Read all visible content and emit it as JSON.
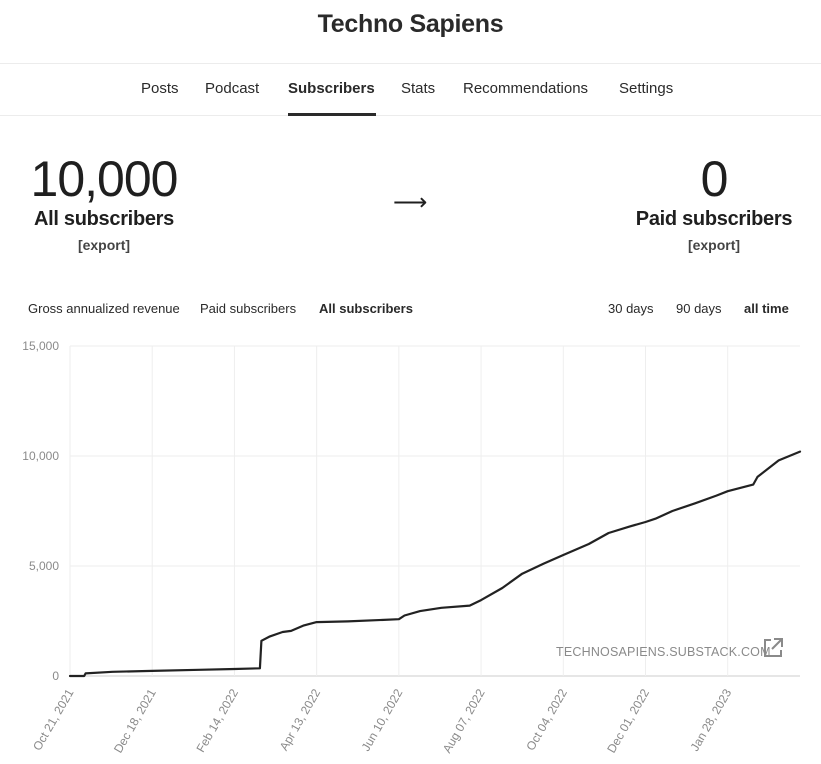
{
  "site": {
    "title": "Techno Sapiens"
  },
  "nav": {
    "tabs": [
      {
        "label": "Posts"
      },
      {
        "label": "Podcast"
      },
      {
        "label": "Subscribers",
        "active": true
      },
      {
        "label": "Stats"
      },
      {
        "label": "Recommendations"
      },
      {
        "label": "Settings"
      }
    ]
  },
  "stats": {
    "all": {
      "value": "10,000",
      "label": "All subscribers",
      "export": "[export]"
    },
    "arrow": "⟶",
    "paid": {
      "value": "0",
      "label": "Paid subscribers",
      "export": "[export]"
    }
  },
  "chart_filters": {
    "metrics": [
      "Gross annualized revenue",
      "Paid subscribers",
      "All subscribers"
    ],
    "active_metric": "All subscribers",
    "ranges": [
      "30 days",
      "90 days",
      "all time"
    ],
    "active_range": "all time"
  },
  "watermark": "TECHNOSAPIENS.SUBSTACK.COM",
  "icons": {
    "external_link": "external-link-icon"
  },
  "colors": {
    "line": "#222222",
    "grid": "#eeeeee",
    "tick_text": "#8a8a8a"
  },
  "chart_data": {
    "type": "line",
    "title": "",
    "xlabel": "",
    "ylabel": "",
    "ylim": [
      0,
      15000
    ],
    "y_ticks": [
      {
        "value": 0,
        "label": "0"
      },
      {
        "value": 5000,
        "label": "5,000"
      },
      {
        "value": 10000,
        "label": "10,000"
      },
      {
        "value": 15000,
        "label": "15,000"
      }
    ],
    "x_ticks": [
      {
        "date": "2021-10-21",
        "label": "Oct 21, 2021"
      },
      {
        "date": "2021-12-18",
        "label": "Dec 18, 2021"
      },
      {
        "date": "2022-02-14",
        "label": "Feb 14, 2022"
      },
      {
        "date": "2022-04-13",
        "label": "Apr 13, 2022"
      },
      {
        "date": "2022-06-10",
        "label": "Jun 10, 2022"
      },
      {
        "date": "2022-08-07",
        "label": "Aug 07, 2022"
      },
      {
        "date": "2022-10-04",
        "label": "Oct 04, 2022"
      },
      {
        "date": "2022-12-01",
        "label": "Dec 01, 2022"
      },
      {
        "date": "2023-01-28",
        "label": "Jan 28, 2023"
      }
    ],
    "xlim": [
      "2021-10-21",
      "2023-03-20"
    ],
    "grid": true,
    "series": [
      {
        "x": [
          "2021-10-21",
          "2021-10-31",
          "2021-11-01",
          "2021-11-20",
          "2021-12-18",
          "2022-01-20",
          "2022-02-14",
          "2022-03-04",
          "2022-03-05",
          "2022-03-11",
          "2022-03-20",
          "2022-03-26",
          "2022-04-04",
          "2022-04-13",
          "2022-05-05",
          "2022-06-10",
          "2022-06-14",
          "2022-06-25",
          "2022-07-10",
          "2022-07-30",
          "2022-08-07",
          "2022-08-22",
          "2022-09-05",
          "2022-09-20",
          "2022-10-04",
          "2022-10-22",
          "2022-11-05",
          "2022-11-20",
          "2022-12-01",
          "2022-12-08",
          "2022-12-20",
          "2023-01-05",
          "2023-01-20",
          "2023-01-28",
          "2023-02-15",
          "2023-02-18",
          "2023-03-05",
          "2023-03-20"
        ],
        "values": [
          0,
          0,
          120,
          190,
          230,
          280,
          320,
          350,
          1600,
          1800,
          2000,
          2050,
          2300,
          2450,
          2480,
          2580,
          2750,
          2950,
          3100,
          3200,
          3450,
          4000,
          4650,
          5100,
          5500,
          6000,
          6500,
          6800,
          7000,
          7150,
          7500,
          7850,
          8200,
          8400,
          8700,
          9050,
          9800,
          10200
        ]
      }
    ]
  }
}
